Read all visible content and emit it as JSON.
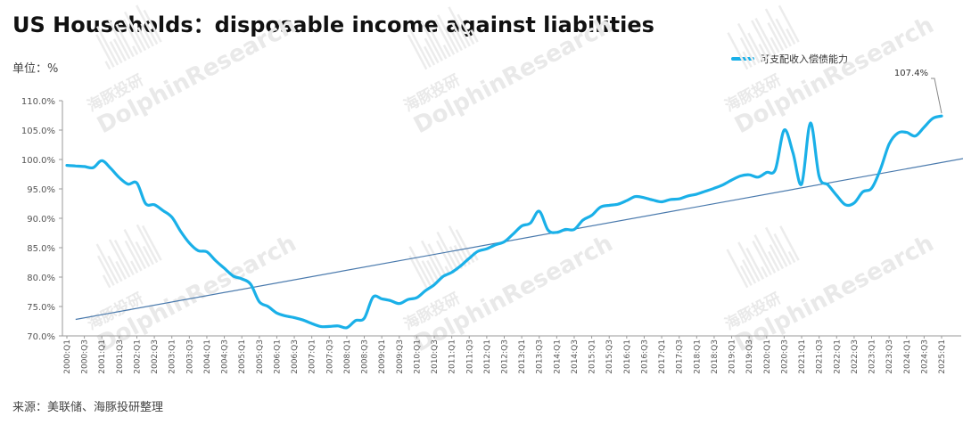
{
  "header": {
    "title": "US Households：disposable income against liabilities"
  },
  "unit_label": "单位：%",
  "source": "来源：美联储、海豚投研整理",
  "watermark": {
    "cn": "海豚投研",
    "en": "DolphinResearch"
  },
  "colors": {
    "series": "#1ab0e8",
    "trend": "#4a7aad",
    "axis": "#9a9a9a"
  },
  "chart_data": {
    "type": "line",
    "title": "US Households：disposable income against liabilities",
    "ylabel": "单位：%",
    "xlabel": "",
    "ylim": [
      70,
      110
    ],
    "yticks": [
      70,
      75,
      80,
      85,
      90,
      95,
      100,
      105,
      110
    ],
    "ytick_labels": [
      "70.0%",
      "75.0%",
      "80.0%",
      "85.0%",
      "90.0%",
      "95.0%",
      "100.0%",
      "105.0%",
      "110.0%"
    ],
    "xtick_labels": [
      "2000:Q1",
      "2000:Q3",
      "2001:Q1",
      "2001:Q3",
      "2002:Q1",
      "2002:Q3",
      "2003:Q1",
      "2003:Q3",
      "2004:Q1",
      "2004:Q3",
      "2005:Q1",
      "2005:Q3",
      "2006:Q1",
      "2006:Q3",
      "2007:Q1",
      "2007:Q3",
      "2008:Q1",
      "2008:Q3",
      "2009:Q1",
      "2009:Q3",
      "2010:Q1",
      "2010:Q3",
      "2011:Q1",
      "2011:Q3",
      "2012:Q1",
      "2012:Q3",
      "2013:Q1",
      "2013:Q3",
      "2014:Q1",
      "2014:Q3",
      "2015:Q1",
      "2015:Q3",
      "2016:Q1",
      "2016:Q3",
      "2017:Q1",
      "2017:Q3",
      "2018:Q1",
      "2018:Q3",
      "2019:Q1",
      "2019:Q3",
      "2020:Q1",
      "2020:Q3",
      "2021:Q1",
      "2021:Q3",
      "2022:Q1",
      "2022:Q3",
      "2023:Q1",
      "2023:Q3",
      "2024:Q1",
      "2024:Q3",
      "2025:Q1"
    ],
    "grid": false,
    "legend_position": "top-right",
    "series": [
      {
        "name": "可支配收入偿债能力",
        "color": "#1ab0e8",
        "values": [
          99.0,
          98.9,
          98.8,
          98.6,
          99.8,
          98.5,
          96.9,
          95.8,
          96.0,
          92.5,
          92.3,
          91.3,
          90.2,
          87.8,
          85.8,
          84.5,
          84.3,
          82.8,
          81.5,
          80.2,
          79.7,
          78.8,
          75.8,
          75.0,
          73.9,
          73.4,
          73.1,
          72.7,
          72.1,
          71.6,
          71.6,
          71.7,
          71.4,
          72.6,
          73.0,
          76.6,
          76.3,
          76.0,
          75.5,
          76.2,
          76.5,
          77.7,
          78.7,
          80.1,
          80.8,
          81.9,
          83.2,
          84.4,
          84.8,
          85.5,
          86.0,
          87.3,
          88.7,
          89.2,
          91.2,
          88.0,
          87.6,
          88.1,
          88.1,
          89.7,
          90.5,
          91.9,
          92.2,
          92.4,
          93.0,
          93.7,
          93.5,
          93.1,
          92.8,
          93.2,
          93.3,
          93.8,
          94.1,
          94.6,
          95.1,
          95.7,
          96.5,
          97.2,
          97.4,
          97.0,
          97.8,
          98.3,
          105.0,
          101.2,
          95.8,
          106.2,
          97.1,
          95.7,
          93.9,
          92.3,
          92.6,
          94.5,
          95.1,
          98.3,
          102.6,
          104.5,
          104.6,
          104.0,
          105.5,
          107.0,
          107.4
        ],
        "last_value_label": "107.4%"
      },
      {
        "name": "trend",
        "values_start_end": [
          72.8,
          100.3
        ],
        "x_range_index": [
          1,
          103
        ]
      }
    ]
  }
}
